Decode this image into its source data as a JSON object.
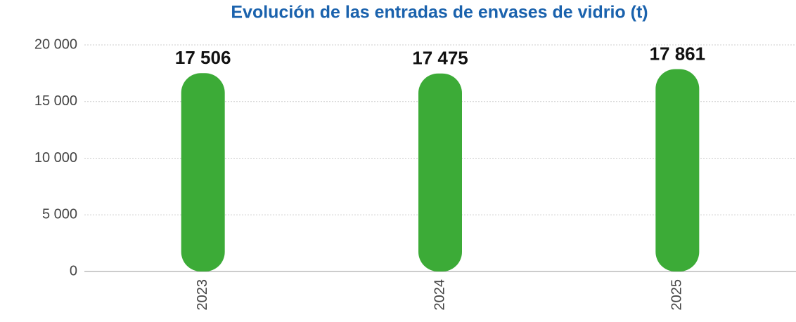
{
  "chart_data": {
    "type": "bar",
    "title": "Evolución de las entradas de envases de vidrio (t)",
    "categories": [
      "2023",
      "2024",
      "2025"
    ],
    "values": [
      17506,
      17475,
      17861
    ],
    "value_labels": [
      "17 506",
      "17 475",
      "17 861"
    ],
    "color": "#3cab37",
    "ylim": [
      0,
      20000
    ],
    "yticks": [
      0,
      {
        "value": 5000,
        "label": "5 000"
      },
      {
        "value": 10000,
        "label": "10 000"
      },
      {
        "value": 15000,
        "label": "15 000"
      },
      {
        "value": 20000,
        "label": "20 000"
      }
    ],
    "grid": true
  }
}
